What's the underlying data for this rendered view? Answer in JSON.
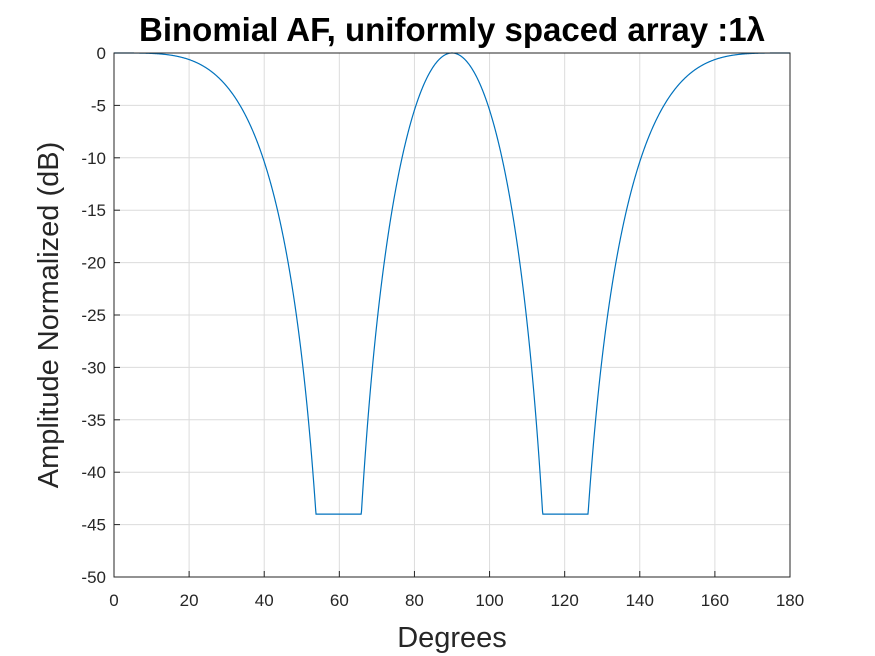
{
  "chart_data": {
    "type": "line",
    "title": "Binomial AF, uniformly spaced array :1λ",
    "xlabel": "Degrees",
    "ylabel": "Amplitude Normalized (dB)",
    "xlim": [
      0,
      180
    ],
    "ylim": [
      -50,
      0
    ],
    "xticks": [
      0,
      20,
      40,
      60,
      80,
      100,
      120,
      140,
      160,
      180
    ],
    "xtick_labels": [
      "0",
      "20",
      "40",
      "60",
      "80",
      "100",
      "120",
      "140",
      "160",
      "180"
    ],
    "yticks": [
      0,
      -5,
      -10,
      -15,
      -20,
      -25,
      -30,
      -35,
      -40,
      -45,
      -50
    ],
    "ytick_labels": [
      "0",
      "-5",
      "-10",
      "-15",
      "-20",
      "-25",
      "-30",
      "-35",
      "-40",
      "-45",
      "-50"
    ],
    "grid": true,
    "floor_db": -44,
    "series": [
      {
        "color": "#0072BD",
        "element_count": 5,
        "spacing_wavelengths": 1
      }
    ]
  }
}
